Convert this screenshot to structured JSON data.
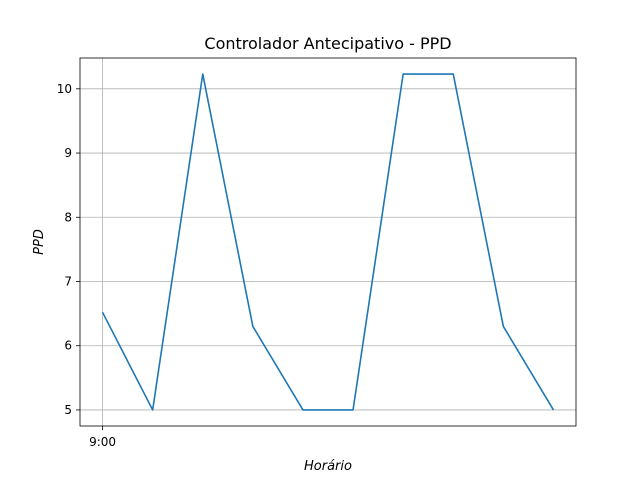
{
  "chart_data": {
    "type": "line",
    "title": "Controlador Antecipativo - PPD",
    "xlabel": "Horário",
    "ylabel": "PPD",
    "x_ticks": [
      "9:00"
    ],
    "y_ticks": [
      "5",
      "6",
      "7",
      "8",
      "9",
      "10"
    ],
    "ylim": [
      4.75,
      10.48
    ],
    "xlim": [
      -0.45,
      9.45
    ],
    "grid": true,
    "series": [
      {
        "color": "#1f77b4",
        "x": [
          0,
          1,
          2,
          3,
          4,
          5,
          6,
          7,
          8,
          9
        ],
        "values": [
          6.52,
          5.0,
          10.23,
          6.3,
          5.0,
          5.0,
          10.23,
          10.23,
          6.3,
          5.0
        ]
      }
    ]
  }
}
